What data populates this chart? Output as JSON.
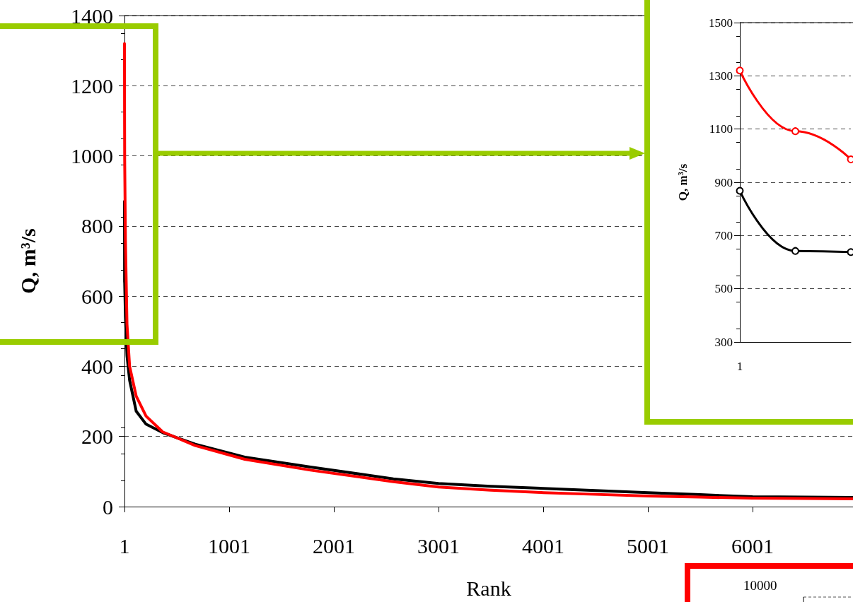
{
  "chart_data": [
    {
      "type": "line",
      "xlabel": "Rank",
      "ylabel": "Q, m³/s",
      "xlim": [
        1,
        6961
      ],
      "xticks": [
        1,
        1001,
        2001,
        3001,
        4001,
        5001,
        6001
      ],
      "ylim": [
        0,
        1400
      ],
      "yticks": [
        0,
        200,
        400,
        600,
        800,
        1000,
        1200,
        1400
      ],
      "grid": "y",
      "marker": "none",
      "line_style": "solid",
      "series": [
        {
          "color": "#000000",
          "x": [
            1,
            2,
            3,
            10,
            25,
            50,
            113,
            207,
            366,
            677,
            1150,
            1778,
            2570,
            3001,
            3500,
            4001,
            4500,
            5001,
            5500,
            6001,
            6500,
            6961
          ],
          "values": [
            870,
            642,
            638,
            540,
            430,
            360,
            272,
            235,
            211,
            178,
            141,
            113,
            79,
            66,
            58,
            52,
            46,
            40,
            34,
            28,
            27,
            26
          ]
        },
        {
          "color": "#ff0000",
          "x": [
            1,
            2,
            3,
            10,
            25,
            50,
            113,
            207,
            366,
            677,
            1150,
            1778,
            2570,
            3001,
            3500,
            4001,
            4500,
            5001,
            5500,
            6001,
            6500,
            6961
          ],
          "values": [
            1320,
            1092,
            986,
            760,
            520,
            400,
            315,
            258,
            213,
            174,
            135,
            104,
            71,
            56,
            47,
            40,
            35,
            30,
            27,
            24,
            23,
            22
          ]
        }
      ]
    },
    {
      "type": "line",
      "ylabel": "Q, m³/s",
      "categories": [
        "1",
        null,
        null
      ],
      "ylim": [
        300,
        1500
      ],
      "yticks": [
        300,
        500,
        700,
        900,
        1100,
        1300,
        1500
      ],
      "grid": "y",
      "marker": "circle",
      "line_style": "solid",
      "series": [
        {
          "color": "#000000",
          "values": [
            868,
            642,
            638
          ]
        },
        {
          "color": "#ff0000",
          "values": [
            1320,
            1092,
            986
          ]
        }
      ]
    },
    {
      "type": "other",
      "annotations": [
        "10000"
      ]
    }
  ]
}
